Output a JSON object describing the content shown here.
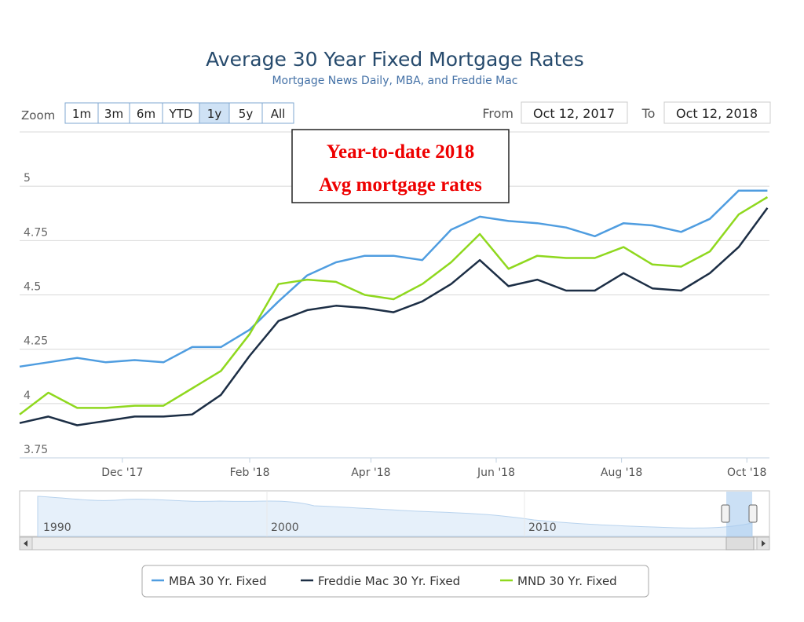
{
  "chart_data": {
    "type": "line",
    "title": "Average 30 Year Fixed Mortgage Rates",
    "subtitle": "Mortgage News Daily, MBA, and Freddie Mac",
    "annotation": [
      "Year-to-date 2018",
      "Avg mortgage rates"
    ],
    "range_selector": {
      "zoom_label": "Zoom",
      "buttons": [
        "1m",
        "3m",
        "6m",
        "YTD",
        "1y",
        "5y",
        "All"
      ],
      "from_label": "From",
      "from": "Oct 12, 2017",
      "to_label": "To",
      "to": "Oct 12, 2018"
    },
    "x": [
      "2017-10-12",
      "2017-10-26",
      "2017-11-09",
      "2017-11-23",
      "2017-12-07",
      "2017-12-21",
      "2018-01-04",
      "2018-01-18",
      "2018-02-01",
      "2018-02-15",
      "2018-03-01",
      "2018-03-15",
      "2018-03-29",
      "2018-04-12",
      "2018-04-26",
      "2018-05-10",
      "2018-05-24",
      "2018-06-07",
      "2018-06-21",
      "2018-07-05",
      "2018-07-19",
      "2018-08-02",
      "2018-08-16",
      "2018-08-30",
      "2018-09-13",
      "2018-09-27",
      "2018-10-11"
    ],
    "series": [
      {
        "name": "MBA 30 Yr. Fixed",
        "color": "#4f9de0",
        "values": [
          4.17,
          4.19,
          4.21,
          4.19,
          4.2,
          4.19,
          4.26,
          4.26,
          4.34,
          4.47,
          4.59,
          4.65,
          4.68,
          4.68,
          4.66,
          4.8,
          4.86,
          4.84,
          4.83,
          4.81,
          4.77,
          4.83,
          4.82,
          4.79,
          4.85,
          4.98,
          4.98
        ]
      },
      {
        "name": "Freddie Mac 30 Yr. Fixed",
        "color": "#1c2e45",
        "values": [
          3.91,
          3.94,
          3.9,
          3.92,
          3.94,
          3.94,
          3.95,
          4.04,
          4.22,
          4.38,
          4.43,
          4.45,
          4.44,
          4.42,
          4.47,
          4.55,
          4.66,
          4.54,
          4.57,
          4.52,
          4.52,
          4.6,
          4.53,
          4.52,
          4.6,
          4.72,
          4.9
        ]
      },
      {
        "name": "MND 30 Yr. Fixed",
        "color": "#8fd81e",
        "values": [
          3.95,
          4.05,
          3.98,
          3.98,
          3.99,
          3.99,
          4.07,
          4.15,
          4.32,
          4.55,
          4.57,
          4.56,
          4.5,
          4.48,
          4.55,
          4.65,
          4.78,
          4.62,
          4.68,
          4.67,
          4.67,
          4.72,
          4.64,
          4.63,
          4.7,
          4.87,
          4.95
        ]
      }
    ],
    "xlim": [
      "2017-10-12",
      "2018-10-12"
    ],
    "xticks": [
      {
        "value": "2017-12-01",
        "label": "Dec '17"
      },
      {
        "value": "2018-02-01",
        "label": "Feb '18"
      },
      {
        "value": "2018-04-01",
        "label": "Apr '18"
      },
      {
        "value": "2018-06-01",
        "label": "Jun '18"
      },
      {
        "value": "2018-08-01",
        "label": "Aug '18"
      },
      {
        "value": "2018-10-01",
        "label": "Oct '18"
      }
    ],
    "ylim": [
      3.75,
      5.25
    ],
    "yticks": [
      3.75,
      4,
      4.25,
      4.5,
      4.75,
      5
    ],
    "grid": true,
    "legend": "bottom",
    "navigator": {
      "labels": [
        "1990",
        "2000",
        "2010"
      ]
    }
  }
}
